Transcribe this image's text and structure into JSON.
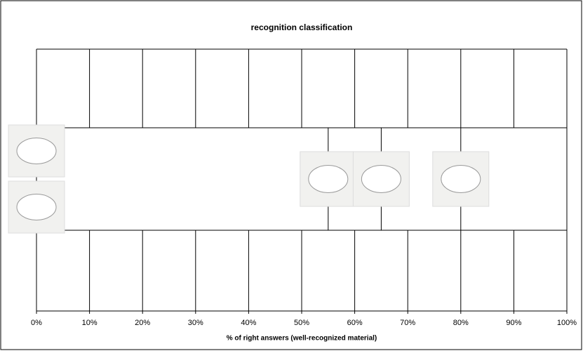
{
  "chart_data": {
    "type": "scatter",
    "title": "recognition classification",
    "xlabel": "% of right answers (well-recognized material)",
    "x": [
      0,
      0,
      55,
      65,
      80
    ],
    "xlim": [
      0,
      100
    ],
    "xticks": [
      {
        "value": 0,
        "label": "0%"
      },
      {
        "value": 10,
        "label": "10%"
      },
      {
        "value": 20,
        "label": "20%"
      },
      {
        "value": 30,
        "label": "30%"
      },
      {
        "value": 40,
        "label": "40%"
      },
      {
        "value": 50,
        "label": "50%"
      },
      {
        "value": 60,
        "label": "60%"
      },
      {
        "value": 70,
        "label": "70%"
      },
      {
        "value": 80,
        "label": "80%"
      },
      {
        "value": 90,
        "label": "90%"
      },
      {
        "value": 100,
        "label": "100%"
      }
    ],
    "grid": true
  }
}
